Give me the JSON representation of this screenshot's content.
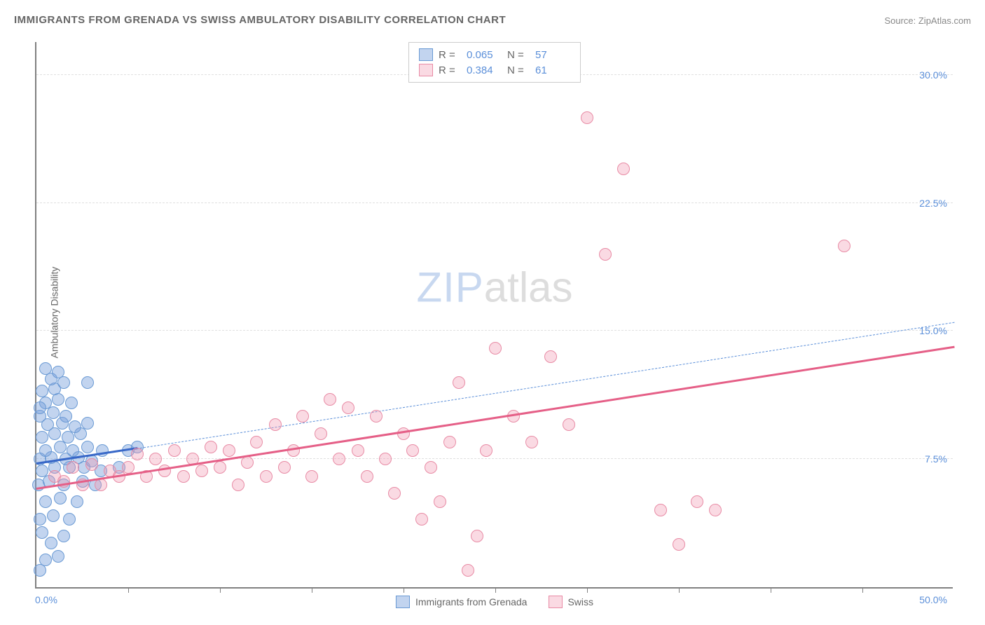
{
  "title": "IMMIGRANTS FROM GRENADA VS SWISS AMBULATORY DISABILITY CORRELATION CHART",
  "source": "Source: ZipAtlas.com",
  "yaxis": "Ambulatory Disability",
  "watermark": {
    "zip": "ZIP",
    "atlas": "atlas"
  },
  "chart": {
    "type": "scatter",
    "background_color": "#ffffff",
    "grid_color": "#e0e0e0",
    "axis_color": "#808080",
    "label_color": "#5b8fd9",
    "xlim": [
      0,
      50
    ],
    "ylim": [
      0,
      32
    ],
    "yticks": [
      {
        "v": 7.5,
        "label": "7.5%"
      },
      {
        "v": 15.0,
        "label": "15.0%"
      },
      {
        "v": 22.5,
        "label": "22.5%"
      },
      {
        "v": 30.0,
        "label": "30.0%"
      }
    ],
    "xlabels": [
      {
        "v": 0,
        "label": "0.0%"
      },
      {
        "v": 50,
        "label": "50.0%"
      }
    ],
    "xticks": [
      5,
      10,
      15,
      20,
      25,
      30,
      35,
      40,
      45
    ],
    "series": [
      {
        "name": "Immigrants from Grenada",
        "color_fill": "rgba(120,160,220,0.45)",
        "color_stroke": "#6a9ad4",
        "marker_radius": 9,
        "R": "0.065",
        "N": "57",
        "trend": {
          "style": "dashed",
          "color": "#5b8fd9",
          "width": 1.5,
          "x1": 0,
          "y1": 7.2,
          "x2": 50,
          "y2": 15.5
        },
        "trend_solid_segment": {
          "style": "solid",
          "color": "#3868c8",
          "width": 3,
          "x1": 0,
          "y1": 7.2,
          "x2": 5.5,
          "y2": 8.1
        },
        "points": [
          [
            0.2,
            1.0
          ],
          [
            0.5,
            1.6
          ],
          [
            1.2,
            1.8
          ],
          [
            0.8,
            2.6
          ],
          [
            0.3,
            3.2
          ],
          [
            1.5,
            3.0
          ],
          [
            0.2,
            4.0
          ],
          [
            0.9,
            4.2
          ],
          [
            1.8,
            4.0
          ],
          [
            0.5,
            5.0
          ],
          [
            1.3,
            5.2
          ],
          [
            2.2,
            5.0
          ],
          [
            0.1,
            6.0
          ],
          [
            0.7,
            6.2
          ],
          [
            1.5,
            6.0
          ],
          [
            2.5,
            6.2
          ],
          [
            3.2,
            6.0
          ],
          [
            0.3,
            6.8
          ],
          [
            1.0,
            7.0
          ],
          [
            1.8,
            7.0
          ],
          [
            2.6,
            7.0
          ],
          [
            3.5,
            6.8
          ],
          [
            4.5,
            7.0
          ],
          [
            0.2,
            7.5
          ],
          [
            0.8,
            7.6
          ],
          [
            1.6,
            7.5
          ],
          [
            2.3,
            7.6
          ],
          [
            3.0,
            7.4
          ],
          [
            0.5,
            8.0
          ],
          [
            1.3,
            8.2
          ],
          [
            2.0,
            8.0
          ],
          [
            2.8,
            8.2
          ],
          [
            3.6,
            8.0
          ],
          [
            5.0,
            8.0
          ],
          [
            5.5,
            8.2
          ],
          [
            0.3,
            8.8
          ],
          [
            1.0,
            9.0
          ],
          [
            1.7,
            8.8
          ],
          [
            2.4,
            9.0
          ],
          [
            0.6,
            9.5
          ],
          [
            1.4,
            9.6
          ],
          [
            2.1,
            9.4
          ],
          [
            2.8,
            9.6
          ],
          [
            0.2,
            10.0
          ],
          [
            0.9,
            10.2
          ],
          [
            1.6,
            10.0
          ],
          [
            0.5,
            10.8
          ],
          [
            1.2,
            11.0
          ],
          [
            1.9,
            10.8
          ],
          [
            0.3,
            11.5
          ],
          [
            1.0,
            11.6
          ],
          [
            0.8,
            12.2
          ],
          [
            1.5,
            12.0
          ],
          [
            2.8,
            12.0
          ],
          [
            0.5,
            12.8
          ],
          [
            1.2,
            12.6
          ],
          [
            0.2,
            10.5
          ]
        ]
      },
      {
        "name": "Swiss",
        "color_fill": "rgba(240,150,175,0.35)",
        "color_stroke": "#e88ba5",
        "marker_radius": 9,
        "R": "0.384",
        "N": "61",
        "trend": {
          "style": "solid",
          "color": "#e55f87",
          "width": 3,
          "x1": 0,
          "y1": 5.7,
          "x2": 50,
          "y2": 14.0
        },
        "points": [
          [
            1.0,
            6.5
          ],
          [
            2.0,
            7.0
          ],
          [
            2.5,
            6.0
          ],
          [
            3.0,
            7.2
          ],
          [
            3.5,
            6.0
          ],
          [
            4.0,
            6.8
          ],
          [
            4.5,
            6.5
          ],
          [
            5.0,
            7.0
          ],
          [
            5.5,
            7.8
          ],
          [
            6.0,
            6.5
          ],
          [
            6.5,
            7.5
          ],
          [
            7.0,
            6.8
          ],
          [
            7.5,
            8.0
          ],
          [
            8.0,
            6.5
          ],
          [
            8.5,
            7.5
          ],
          [
            9.0,
            6.8
          ],
          [
            9.5,
            8.2
          ],
          [
            10.0,
            7.0
          ],
          [
            10.5,
            8.0
          ],
          [
            11.0,
            6.0
          ],
          [
            11.5,
            7.3
          ],
          [
            12.0,
            8.5
          ],
          [
            12.5,
            6.5
          ],
          [
            13.0,
            9.5
          ],
          [
            13.5,
            7.0
          ],
          [
            14.0,
            8.0
          ],
          [
            14.5,
            10.0
          ],
          [
            15.0,
            6.5
          ],
          [
            15.5,
            9.0
          ],
          [
            16.0,
            11.0
          ],
          [
            16.5,
            7.5
          ],
          [
            17.0,
            10.5
          ],
          [
            17.5,
            8.0
          ],
          [
            18.0,
            6.5
          ],
          [
            18.5,
            10.0
          ],
          [
            19.0,
            7.5
          ],
          [
            19.5,
            5.5
          ],
          [
            20.0,
            9.0
          ],
          [
            20.5,
            8.0
          ],
          [
            21.0,
            4.0
          ],
          [
            21.5,
            7.0
          ],
          [
            22.0,
            5.0
          ],
          [
            22.5,
            8.5
          ],
          [
            23.0,
            12.0
          ],
          [
            23.5,
            1.0
          ],
          [
            24.0,
            3.0
          ],
          [
            24.5,
            8.0
          ],
          [
            25.0,
            14.0
          ],
          [
            26.0,
            10.0
          ],
          [
            27.0,
            8.5
          ],
          [
            28.0,
            13.5
          ],
          [
            29.0,
            9.5
          ],
          [
            30.0,
            27.5
          ],
          [
            31.0,
            19.5
          ],
          [
            32.0,
            24.5
          ],
          [
            34.0,
            4.5
          ],
          [
            35.0,
            2.5
          ],
          [
            36.0,
            5.0
          ],
          [
            37.0,
            4.5
          ],
          [
            44.0,
            20.0
          ],
          [
            1.5,
            6.2
          ]
        ]
      }
    ]
  }
}
